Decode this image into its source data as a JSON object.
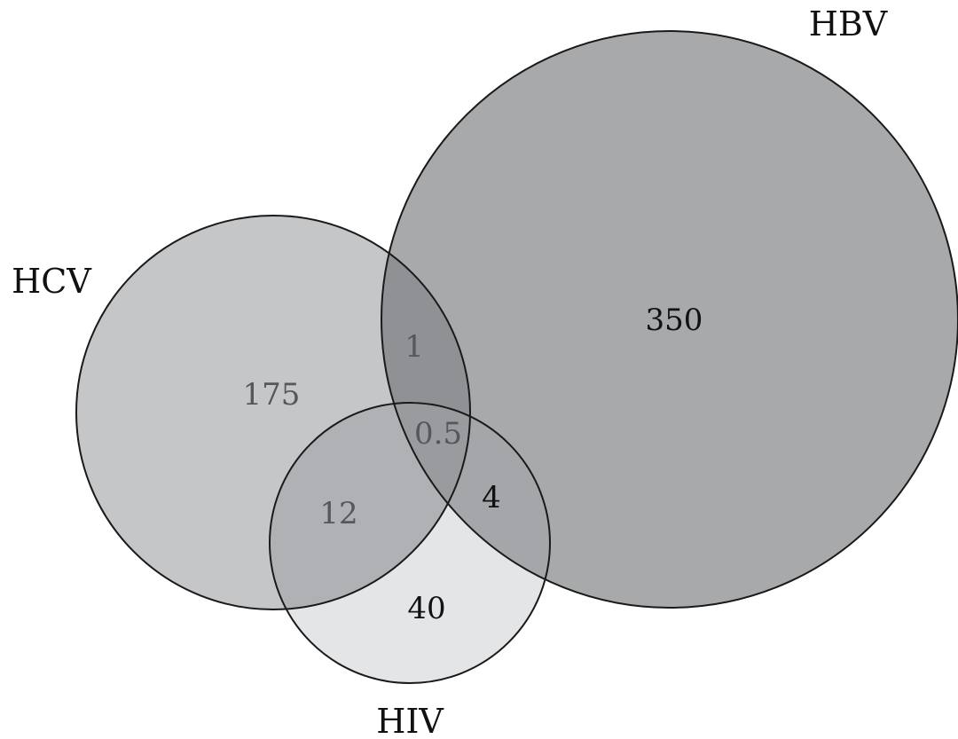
{
  "sets": {
    "hbv": {
      "label": "HBV",
      "fill": "#a8a9ab"
    },
    "hcv": {
      "label": "HCV",
      "fill": "#c5c6c8"
    },
    "hiv": {
      "label": "HIV",
      "fill": "#e4e5e7"
    }
  },
  "regions": {
    "hbv_only": "350",
    "hcv_only": "175",
    "hiv_only": "40",
    "hcv_hbv": "1",
    "hcv_hiv": "12",
    "hbv_hiv": "4",
    "all_three": "0.5"
  },
  "colors": {
    "hcv_hbv": "#909194",
    "hcv_hiv": "#b0b1b4",
    "hbv_hiv": "#a5a6a9",
    "all_three": "#9a9b9e",
    "outline": "#1a1a1a",
    "text_dark": "#111111",
    "text_grey": "#55575a"
  }
}
